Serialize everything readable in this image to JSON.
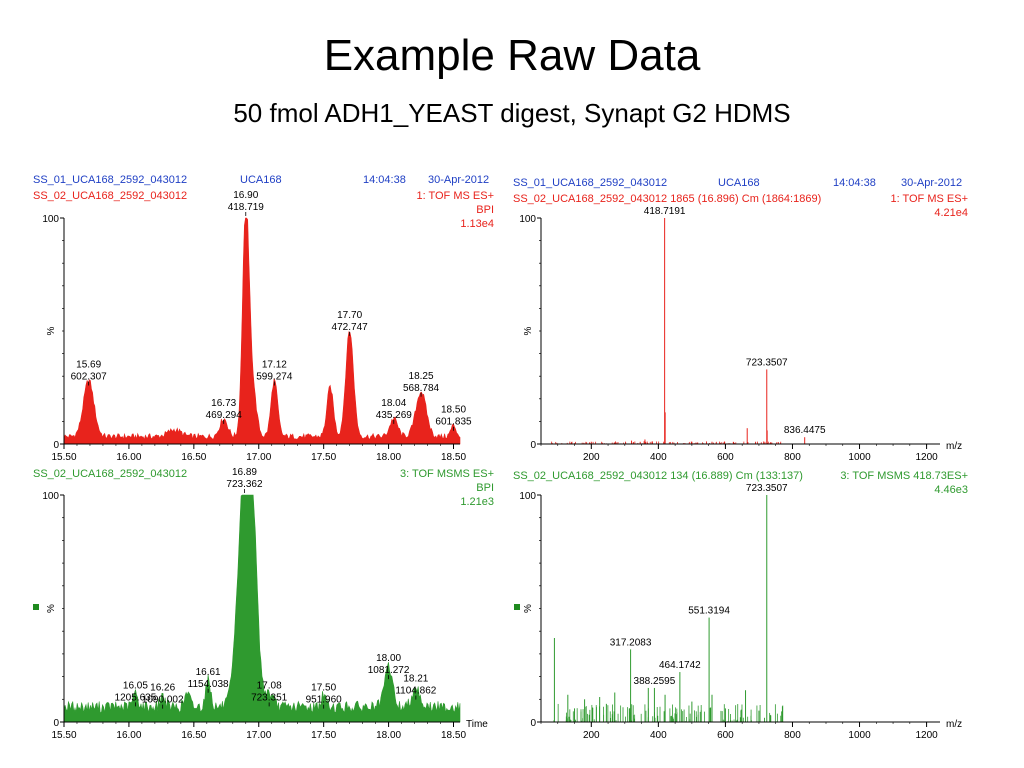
{
  "slide": {
    "title": "Example Raw Data",
    "subtitle": "50 fmol ADH1_YEAST digest, Synapt G2 HDMS"
  },
  "colors": {
    "header": "#1f3fc4",
    "ms": "#e8231c",
    "msms": "#2f9a2f",
    "marker": "#1e8a1e"
  },
  "panels": {
    "tl": {
      "line1": {
        "file": "SS_01_UCA168_2592_043012",
        "sample": "UCA168",
        "time": "14:04:38",
        "date": "30-Apr-2012"
      },
      "line2": "SS_02_UCA168_2592_043012",
      "func": "1: TOF MS ES+",
      "mode": "BPI",
      "intensity": "1.13e4"
    },
    "tr": {
      "line1": {
        "file": "SS_01_UCA168_2592_043012",
        "sample": "UCA168",
        "time": "14:04:38",
        "date": "30-Apr-2012"
      },
      "line2": "SS_02_UCA168_2592_043012 1865 (16.896) Cm (1864:1869)",
      "func": "1: TOF MS ES+",
      "intensity": "4.21e4"
    },
    "bl": {
      "line1": "SS_02_UCA168_2592_043012",
      "func": "3: TOF MSMS ES+",
      "mode": "BPI",
      "intensity": "1.21e3"
    },
    "br": {
      "line1": "SS_02_UCA168_2592_043012 134 (16.889) Cm (133:137)",
      "func": "3: TOF MSMS 418.73ES+",
      "intensity": "4.46e3"
    }
  },
  "chart_data": [
    {
      "type": "area",
      "color": "#e8231c",
      "ylabel": "%",
      "xlim": [
        15.5,
        18.55
      ],
      "ylim": [
        0,
        100
      ],
      "xticks": [
        "15.50",
        "16.00",
        "16.50",
        "17.00",
        "17.50",
        "18.00",
        "18.50"
      ],
      "yticks": [
        "0",
        "100"
      ],
      "peaks": [
        {
          "x": 15.69,
          "y": 25,
          "w": 0.04
        },
        {
          "x": 16.73,
          "y": 8,
          "w": 0.03
        },
        {
          "x": 16.9,
          "y": 100,
          "w": 0.025
        },
        {
          "x": 17.12,
          "y": 25,
          "w": 0.025
        },
        {
          "x": 17.55,
          "y": 22,
          "w": 0.025
        },
        {
          "x": 17.7,
          "y": 47,
          "w": 0.03
        },
        {
          "x": 18.04,
          "y": 8,
          "w": 0.03
        },
        {
          "x": 18.25,
          "y": 20,
          "w": 0.04
        },
        {
          "x": 18.5,
          "y": 5,
          "w": 0.02
        },
        {
          "x": 16.35,
          "y": 3,
          "w": 0.05
        },
        {
          "x": 16.95,
          "y": 22,
          "w": 0.03
        }
      ],
      "baseline": 2,
      "labels": [
        {
          "x": 15.69,
          "y": 25,
          "rt": "15.69",
          "mz": "602.307"
        },
        {
          "x": 16.73,
          "y": 8,
          "rt": "16.73",
          "mz": "469.294"
        },
        {
          "x": 16.9,
          "y": 100,
          "rt": "16.90",
          "mz": "418.719"
        },
        {
          "x": 17.12,
          "y": 25,
          "rt": "17.12",
          "mz": "599.274"
        },
        {
          "x": 17.7,
          "y": 47,
          "rt": "17.70",
          "mz": "472.747"
        },
        {
          "x": 18.04,
          "y": 8,
          "rt": "18.04",
          "mz": "435.269"
        },
        {
          "x": 18.25,
          "y": 20,
          "rt": "18.25",
          "mz": "568.784"
        },
        {
          "x": 18.5,
          "y": 5,
          "rt": "18.50",
          "mz": "601.835"
        }
      ]
    },
    {
      "type": "bar",
      "color": "#e8231c",
      "ylabel": "%",
      "xlabel": "m/z",
      "xlim": [
        50,
        1240
      ],
      "ylim": [
        0,
        100
      ],
      "xticks": [
        "200",
        "400",
        "600",
        "800",
        "1000",
        "1200"
      ],
      "yticks": [
        "0",
        "100"
      ],
      "sticks": [
        {
          "x": 418.72,
          "y": 100
        },
        {
          "x": 723.35,
          "y": 33
        },
        {
          "x": 836.45,
          "y": 3
        },
        {
          "x": 420.3,
          "y": 14
        },
        {
          "x": 665,
          "y": 7
        },
        {
          "x": 200,
          "y": 1
        },
        {
          "x": 320,
          "y": 1.5
        },
        {
          "x": 560,
          "y": 1
        },
        {
          "x": 724.5,
          "y": 6
        },
        {
          "x": 690,
          "y": 1
        },
        {
          "x": 360,
          "y": 2
        },
        {
          "x": 500,
          "y": 1
        }
      ],
      "labels": [
        {
          "x": 418.7191,
          "y": 100,
          "text": "418.7191"
        },
        {
          "x": 723.3507,
          "y": 33,
          "text": "723.3507"
        },
        {
          "x": 836.4475,
          "y": 3,
          "text": "836.4475"
        }
      ]
    },
    {
      "type": "area",
      "color": "#2f9a2f",
      "ylabel": "%",
      "xlabel": "Time",
      "xlim": [
        15.5,
        18.55
      ],
      "ylim": [
        0,
        100
      ],
      "xticks": [
        "15.50",
        "16.00",
        "16.50",
        "17.00",
        "17.50",
        "18.00",
        "18.50"
      ],
      "yticks": [
        "0",
        "100"
      ],
      "peaks": [
        {
          "x": 16.05,
          "y": 6,
          "w": 0.02
        },
        {
          "x": 16.26,
          "y": 5,
          "w": 0.02
        },
        {
          "x": 16.61,
          "y": 12,
          "w": 0.02
        },
        {
          "x": 16.89,
          "y": 100,
          "w": 0.05
        },
        {
          "x": 17.08,
          "y": 6,
          "w": 0.03
        },
        {
          "x": 17.5,
          "y": 5,
          "w": 0.02
        },
        {
          "x": 18.0,
          "y": 18,
          "w": 0.03
        },
        {
          "x": 18.21,
          "y": 9,
          "w": 0.03
        },
        {
          "x": 16.45,
          "y": 6,
          "w": 0.02
        },
        {
          "x": 16.95,
          "y": 60,
          "w": 0.04
        }
      ],
      "baseline": 4,
      "labels": [
        {
          "x": 16.05,
          "y": 6,
          "rt": "16.05",
          "mz": "1205.635"
        },
        {
          "x": 16.26,
          "y": 5,
          "rt": "16.26",
          "mz": "1090.002"
        },
        {
          "x": 16.61,
          "y": 12,
          "rt": "16.61",
          "mz": "1154.038"
        },
        {
          "x": 16.89,
          "y": 100,
          "rt": "16.89",
          "mz": "723.362"
        },
        {
          "x": 17.08,
          "y": 6,
          "rt": "17.08",
          "mz": "723.351"
        },
        {
          "x": 17.5,
          "y": 5,
          "rt": "17.50",
          "mz": "951.960"
        },
        {
          "x": 18.0,
          "y": 18,
          "rt": "18.00",
          "mz": "1081.272"
        },
        {
          "x": 18.21,
          "y": 9,
          "rt": "18.21",
          "mz": "1104.862"
        }
      ]
    },
    {
      "type": "bar",
      "color": "#2f9a2f",
      "ylabel": "%",
      "xlabel": "m/z",
      "xlim": [
        50,
        1240
      ],
      "ylim": [
        0,
        100
      ],
      "xticks": [
        "200",
        "400",
        "600",
        "800",
        "1000",
        "1200"
      ],
      "yticks": [
        "0",
        "100"
      ],
      "sticks": [
        {
          "x": 723.35,
          "y": 100
        },
        {
          "x": 551.32,
          "y": 46
        },
        {
          "x": 317.21,
          "y": 32
        },
        {
          "x": 464.17,
          "y": 22
        },
        {
          "x": 388.26,
          "y": 15
        },
        {
          "x": 90,
          "y": 37
        },
        {
          "x": 180,
          "y": 10
        },
        {
          "x": 130,
          "y": 12
        },
        {
          "x": 270,
          "y": 13
        },
        {
          "x": 660,
          "y": 14
        },
        {
          "x": 560,
          "y": 12
        },
        {
          "x": 225,
          "y": 11
        },
        {
          "x": 245,
          "y": 8
        },
        {
          "x": 370,
          "y": 15
        },
        {
          "x": 420,
          "y": 12
        },
        {
          "x": 500,
          "y": 9
        },
        {
          "x": 600,
          "y": 6
        },
        {
          "x": 700,
          "y": 5
        },
        {
          "x": 150,
          "y": 6
        }
      ],
      "labels": [
        {
          "x": 723.3507,
          "y": 100,
          "text": "723.3507"
        },
        {
          "x": 551.3194,
          "y": 46,
          "text": "551.3194"
        },
        {
          "x": 317.2083,
          "y": 32,
          "text": "317.2083"
        },
        {
          "x": 464.1742,
          "y": 22,
          "text": "464.1742"
        },
        {
          "x": 388.2595,
          "y": 15,
          "text": "388.2595"
        }
      ]
    }
  ]
}
